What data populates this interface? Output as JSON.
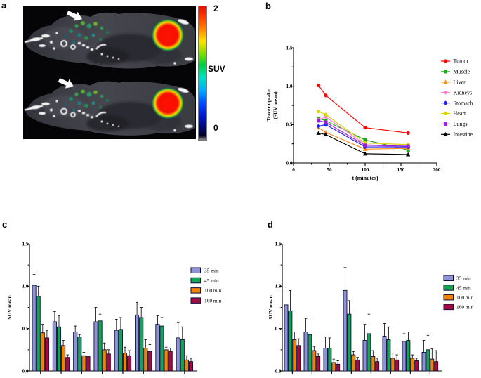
{
  "figure": {
    "panel_labels": {
      "a": "a",
      "b": "b",
      "c": "c",
      "d": "d"
    },
    "colorbar": {
      "max": "2",
      "unit": "SUV",
      "min": "0"
    }
  },
  "chart_data": [
    {
      "id": "b",
      "type": "line",
      "xlabel": "t (minutes)",
      "ylabel_lines": [
        "Tracer uptake",
        "(SUV mean)"
      ],
      "xlim": [
        0,
        200
      ],
      "ylim": [
        0,
        1.5
      ],
      "xticks": [
        0,
        50,
        100,
        150,
        200
      ],
      "xtick_labels": [
        "0",
        "50",
        "100",
        "150",
        "200"
      ],
      "xminorticks": [
        25,
        75,
        125,
        175
      ],
      "yticks": [
        0,
        0.5,
        1.0,
        1.5
      ],
      "ytick_labels": [
        "0.0",
        "0.5",
        "1.0",
        "1.5"
      ],
      "yminorticks": [
        0.25,
        0.75,
        1.25
      ],
      "legend_position": "right",
      "x": [
        35,
        45,
        100,
        160
      ],
      "series": [
        {
          "name": "Tumor",
          "color": "#ff0000",
          "marker": "circle",
          "values": [
            1.01,
            0.88,
            0.46,
            0.39
          ]
        },
        {
          "name": "Muscle",
          "color": "#1fa41f",
          "marker": "square",
          "values": [
            0.58,
            0.55,
            0.3,
            0.17
          ]
        },
        {
          "name": "Liver",
          "color": "#ff8c1a",
          "marker": "triangle-up",
          "values": [
            0.46,
            0.4,
            0.18,
            0.19
          ]
        },
        {
          "name": "Kidneys",
          "color": "#ff78d2",
          "marker": "triangle-down",
          "values": [
            0.56,
            0.6,
            0.24,
            0.2
          ]
        },
        {
          "name": "Stomach",
          "color": "#2222ff",
          "marker": "diamond",
          "values": [
            0.48,
            0.5,
            0.21,
            0.21
          ]
        },
        {
          "name": "Heart",
          "color": "#d6d600",
          "marker": "circle",
          "values": [
            0.67,
            0.63,
            0.26,
            0.24
          ]
        },
        {
          "name": "Lungs",
          "color": "#9a1fd9",
          "marker": "square",
          "values": [
            0.55,
            0.53,
            0.23,
            0.22
          ]
        },
        {
          "name": "Intestine",
          "color": "#000000",
          "marker": "triangle-up",
          "values": [
            0.39,
            0.37,
            0.12,
            0.11
          ]
        }
      ]
    },
    {
      "id": "c",
      "type": "bar",
      "ylabel": "SUV mean",
      "ylim": [
        0,
        1.5
      ],
      "yticks": [
        0,
        0.5,
        1.0,
        1.5
      ],
      "ytick_labels": [
        "0.0",
        "0.5",
        "1.0",
        "1.5"
      ],
      "yminorticks": [
        0.25,
        0.75,
        1.25
      ],
      "n_groups": 8,
      "categories": [
        "",
        "",
        "",
        "",
        "",
        "",
        "",
        ""
      ],
      "legend_position": "right",
      "series": [
        {
          "name": "35 min",
          "color": "#8f93d6",
          "values": [
            1.01,
            0.58,
            0.46,
            0.58,
            0.48,
            0.66,
            0.55,
            0.39
          ],
          "errors": [
            0.13,
            0.12,
            0.07,
            0.17,
            0.13,
            0.15,
            0.1,
            0.18
          ]
        },
        {
          "name": "45 min",
          "color": "#17a257",
          "values": [
            0.88,
            0.52,
            0.4,
            0.59,
            0.49,
            0.63,
            0.53,
            0.37
          ],
          "errors": [
            0.12,
            0.13,
            0.03,
            0.08,
            0.14,
            0.12,
            0.1,
            0.15
          ]
        },
        {
          "name": "100 min",
          "color": "#ef8400",
          "values": [
            0.45,
            0.3,
            0.18,
            0.25,
            0.21,
            0.27,
            0.25,
            0.13
          ],
          "errors": [
            0.1,
            0.06,
            0.04,
            0.08,
            0.07,
            0.1,
            0.03,
            0.05
          ]
        },
        {
          "name": "160 min",
          "color": "#a00d45",
          "values": [
            0.39,
            0.16,
            0.17,
            0.2,
            0.18,
            0.23,
            0.23,
            0.11
          ],
          "errors": [
            0.09,
            0.03,
            0.04,
            0.05,
            0.06,
            0.08,
            0.04,
            0.04
          ]
        }
      ]
    },
    {
      "id": "d",
      "type": "bar",
      "ylabel": "SUV mean",
      "ylim": [
        0,
        1.5
      ],
      "yticks": [
        0,
        0.5,
        1.0,
        1.5
      ],
      "ytick_labels": [
        "0.0",
        "0.5",
        "1.0",
        "1.5"
      ],
      "yminorticks": [
        0.25,
        0.75,
        1.25
      ],
      "n_groups": 8,
      "categories": [
        "",
        "",
        "",
        "",
        "",
        "",
        "",
        ""
      ],
      "legend_position": "right",
      "series": [
        {
          "name": "35 min",
          "color": "#8f93d6",
          "values": [
            0.78,
            0.46,
            0.27,
            0.95,
            0.36,
            0.41,
            0.35,
            0.22
          ],
          "errors": [
            0.21,
            0.16,
            0.13,
            0.27,
            0.19,
            0.15,
            0.09,
            0.14
          ]
        },
        {
          "name": "45 min",
          "color": "#17a257",
          "values": [
            0.71,
            0.43,
            0.27,
            0.67,
            0.44,
            0.37,
            0.36,
            0.25
          ],
          "errors": [
            0.24,
            0.17,
            0.12,
            0.16,
            0.23,
            0.15,
            0.1,
            0.17
          ]
        },
        {
          "name": "100 min",
          "color": "#ef8400",
          "values": [
            0.37,
            0.24,
            0.1,
            0.19,
            0.17,
            0.15,
            0.15,
            0.14
          ],
          "errors": [
            0.09,
            0.05,
            0.04,
            0.04,
            0.07,
            0.06,
            0.04,
            0.12
          ]
        },
        {
          "name": "160 min",
          "color": "#a00d45",
          "values": [
            0.3,
            0.17,
            0.08,
            0.13,
            0.11,
            0.13,
            0.12,
            0.11
          ],
          "errors": [
            0.08,
            0.03,
            0.04,
            0.03,
            0.04,
            0.06,
            0.03,
            0.13
          ]
        }
      ]
    }
  ]
}
